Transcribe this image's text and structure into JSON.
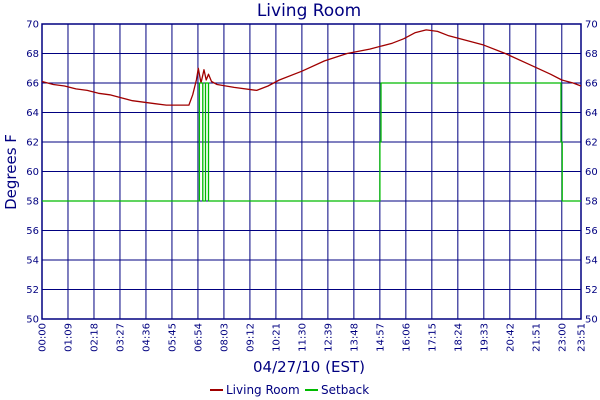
{
  "chart_data": {
    "type": "line",
    "title": "Living Room",
    "xlabel": "04/27/10 (EST)",
    "ylabel": "Degrees F",
    "ylim": [
      50,
      70
    ],
    "yticks": [
      50,
      52,
      54,
      56,
      58,
      60,
      62,
      64,
      66,
      68,
      70
    ],
    "xlim": [
      "00:00",
      "23:51"
    ],
    "xticks": [
      "00:00",
      "01:09",
      "02:18",
      "03:27",
      "04:36",
      "05:45",
      "06:54",
      "08:03",
      "09:12",
      "10:21",
      "11:30",
      "12:39",
      "13:48",
      "14:57",
      "16:06",
      "17:15",
      "18:24",
      "19:33",
      "20:42",
      "21:51",
      "23:00",
      "23:51"
    ],
    "grid": true,
    "legend_position": "bottom-center",
    "series": [
      {
        "name": "Living Room",
        "color": "#a00000",
        "points": [
          [
            "00:00",
            66.1
          ],
          [
            "00:30",
            65.9
          ],
          [
            "01:00",
            65.8
          ],
          [
            "01:30",
            65.6
          ],
          [
            "02:00",
            65.5
          ],
          [
            "02:30",
            65.3
          ],
          [
            "03:00",
            65.2
          ],
          [
            "03:30",
            65.0
          ],
          [
            "04:00",
            64.8
          ],
          [
            "04:30",
            64.7
          ],
          [
            "05:00",
            64.6
          ],
          [
            "05:30",
            64.5
          ],
          [
            "06:30",
            64.5
          ],
          [
            "06:40",
            65.2
          ],
          [
            "06:50",
            66.2
          ],
          [
            "06:55",
            67.0
          ],
          [
            "07:02",
            66.0
          ],
          [
            "07:10",
            66.9
          ],
          [
            "07:16",
            66.2
          ],
          [
            "07:22",
            66.6
          ],
          [
            "07:30",
            66.1
          ],
          [
            "07:45",
            65.9
          ],
          [
            "08:30",
            65.7
          ],
          [
            "09:30",
            65.5
          ],
          [
            "10:00",
            65.8
          ],
          [
            "10:30",
            66.2
          ],
          [
            "11:30",
            66.8
          ],
          [
            "12:30",
            67.5
          ],
          [
            "13:30",
            68.0
          ],
          [
            "14:30",
            68.3
          ],
          [
            "15:30",
            68.7
          ],
          [
            "16:00",
            69.0
          ],
          [
            "16:30",
            69.4
          ],
          [
            "17:00",
            69.6
          ],
          [
            "17:30",
            69.5
          ],
          [
            "18:00",
            69.2
          ],
          [
            "18:30",
            69.0
          ],
          [
            "19:30",
            68.6
          ],
          [
            "20:30",
            68.0
          ],
          [
            "21:30",
            67.3
          ],
          [
            "22:30",
            66.6
          ],
          [
            "23:00",
            66.2
          ],
          [
            "23:30",
            66.0
          ],
          [
            "23:51",
            65.8
          ]
        ]
      },
      {
        "name": "Setback",
        "color": "#00bb00",
        "points": [
          [
            "00:00",
            58
          ],
          [
            "06:58",
            58
          ],
          [
            "06:58",
            66
          ],
          [
            "07:07",
            66
          ],
          [
            "07:07",
            58
          ],
          [
            "07:14",
            58
          ],
          [
            "07:14",
            66
          ],
          [
            "07:22",
            66
          ],
          [
            "07:22",
            58
          ],
          [
            "14:57",
            58
          ],
          [
            "14:57",
            62
          ],
          [
            "15:00",
            62
          ],
          [
            "15:00",
            66
          ],
          [
            "22:58",
            66
          ],
          [
            "22:58",
            62
          ],
          [
            "23:01",
            62
          ],
          [
            "23:01",
            58
          ],
          [
            "23:51",
            58
          ]
        ]
      }
    ]
  }
}
